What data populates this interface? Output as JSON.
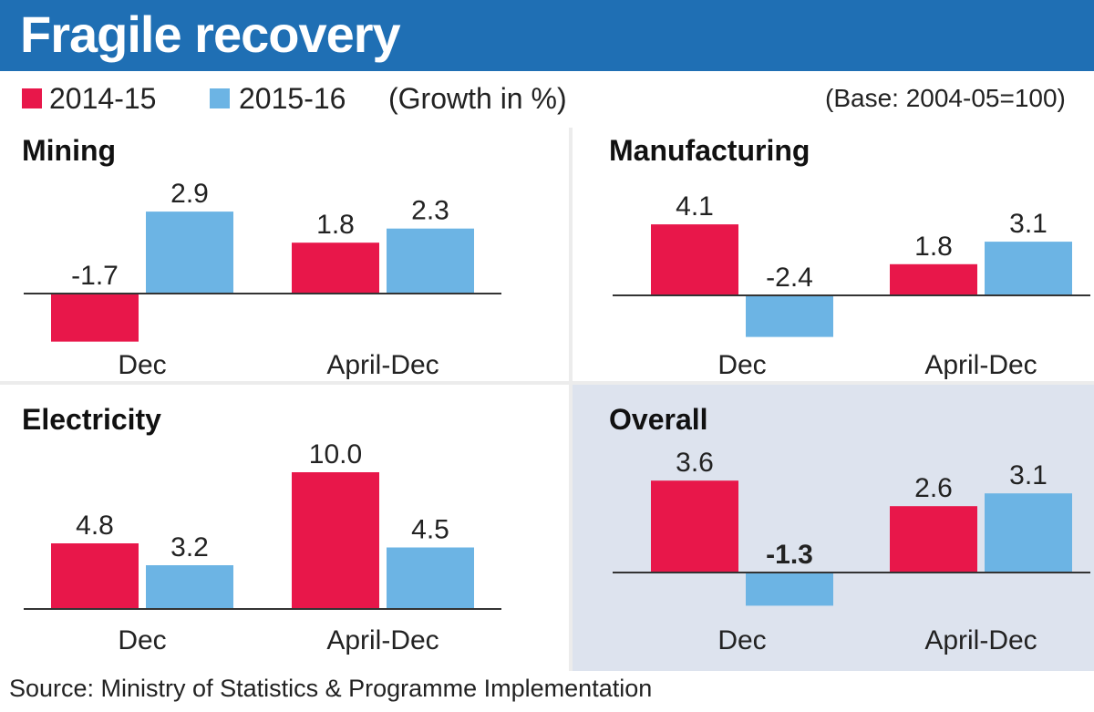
{
  "title": "Fragile recovery",
  "legend": {
    "series1": "2014-15",
    "series2": "2015-16",
    "unit_note": "(Growth in %)",
    "base_note": "(Base: 2004-05=100)"
  },
  "colors": {
    "series1": "#e8174a",
    "series2": "#6cb4e4",
    "header": "#1f6fb4",
    "overall_bg": "#dde3ee"
  },
  "source": "Source: Ministry of Statistics & Programme Implementation",
  "chart_data": [
    {
      "type": "bar",
      "title": "Mining",
      "categories": [
        "Dec",
        "April-Dec"
      ],
      "series": [
        {
          "name": "2014-15",
          "values": [
            -1.7,
            1.8
          ]
        },
        {
          "name": "2015-16",
          "values": [
            2.9,
            2.3
          ]
        }
      ]
    },
    {
      "type": "bar",
      "title": "Manufacturing",
      "categories": [
        "Dec",
        "April-Dec"
      ],
      "series": [
        {
          "name": "2014-15",
          "values": [
            4.1,
            1.8
          ]
        },
        {
          "name": "2015-16",
          "values": [
            -2.4,
            3.1
          ]
        }
      ]
    },
    {
      "type": "bar",
      "title": "Electricity",
      "categories": [
        "Dec",
        "April-Dec"
      ],
      "series": [
        {
          "name": "2014-15",
          "values": [
            4.8,
            10.0
          ]
        },
        {
          "name": "2015-16",
          "values": [
            3.2,
            4.5
          ]
        }
      ]
    },
    {
      "type": "bar",
      "title": "Overall",
      "categories": [
        "Dec",
        "April-Dec"
      ],
      "series": [
        {
          "name": "2014-15",
          "values": [
            3.6,
            2.6
          ]
        },
        {
          "name": "2015-16",
          "values": [
            -1.3,
            3.1
          ]
        }
      ]
    }
  ]
}
